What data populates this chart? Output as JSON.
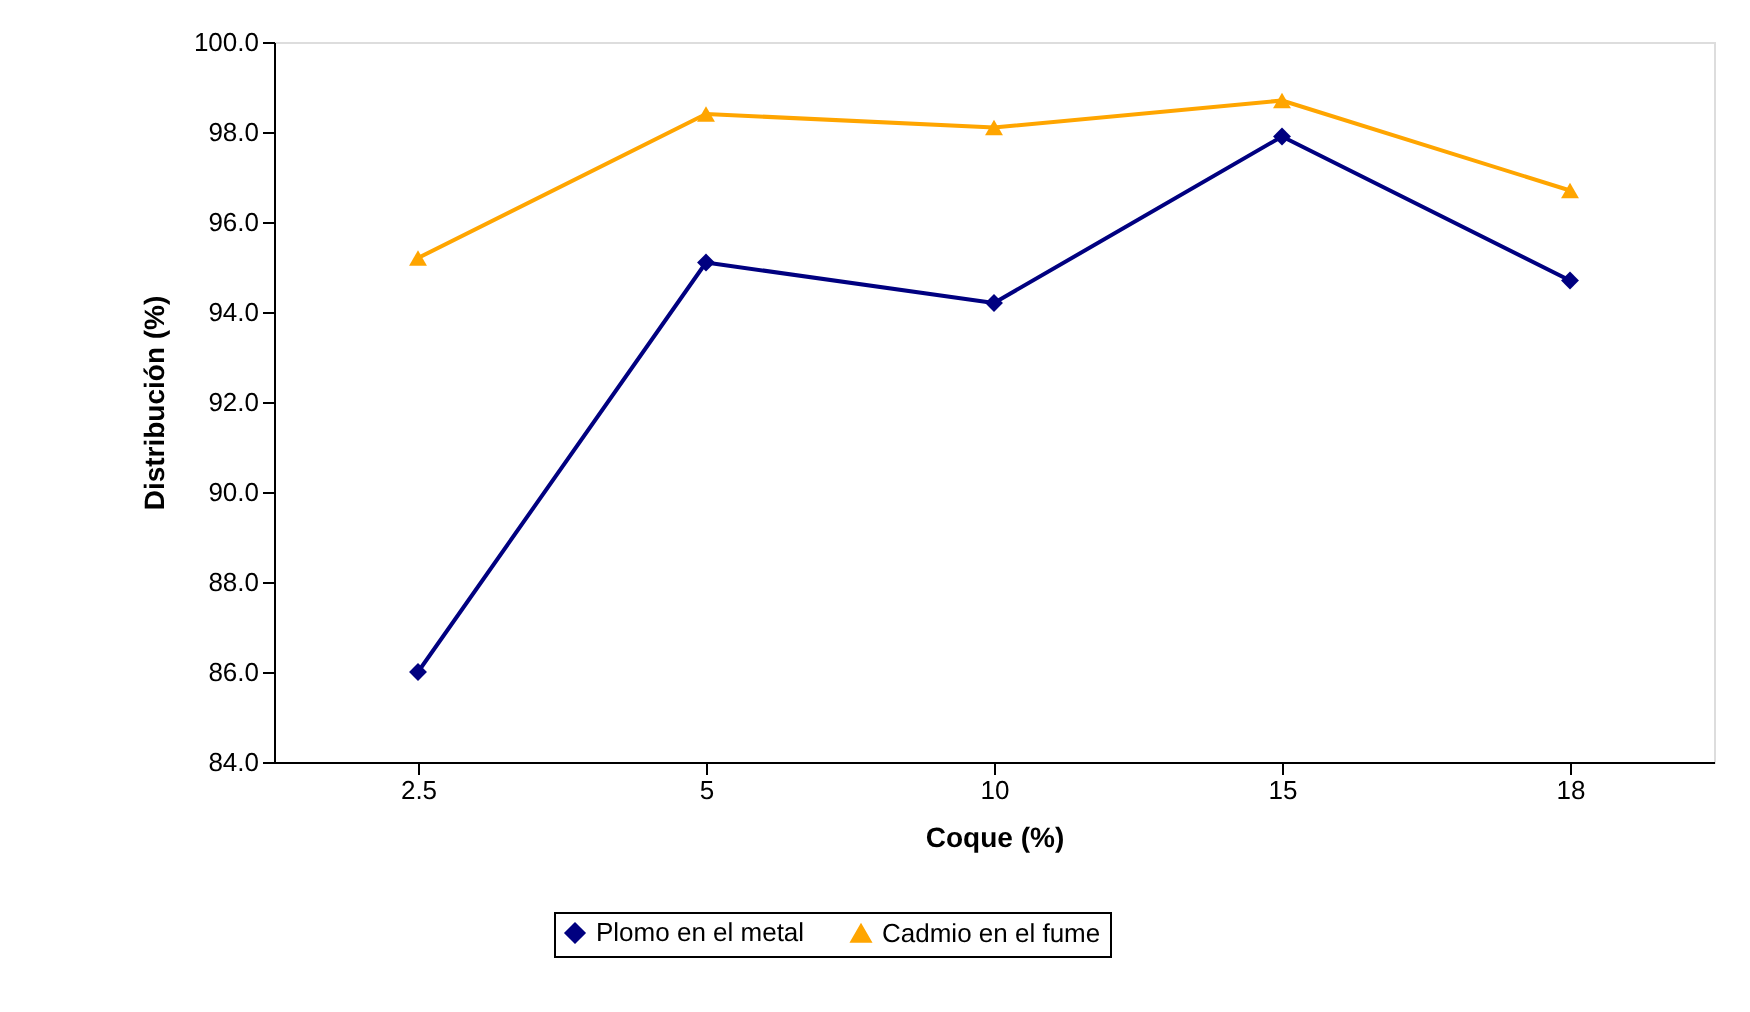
{
  "chart_data": {
    "type": "line",
    "xlabel": "Coque (%)",
    "ylabel": "Distribución (%)",
    "categories": [
      "2.5",
      "5",
      "10",
      "15",
      "18"
    ],
    "series": [
      {
        "name": "Plomo en el metal",
        "color": "#000080",
        "marker": "diamond",
        "values": [
          86.0,
          95.1,
          94.2,
          97.9,
          94.7
        ]
      },
      {
        "name": "Cadmio en el fume",
        "color": "#ffa500",
        "marker": "triangle",
        "values": [
          95.2,
          98.4,
          98.1,
          98.7,
          96.7
        ]
      }
    ],
    "ylim": [
      84,
      100
    ],
    "yticks": [
      {
        "value": 84,
        "label": "84.0"
      },
      {
        "value": 86,
        "label": "86.0"
      },
      {
        "value": 88,
        "label": "88.0"
      },
      {
        "value": 90,
        "label": "90.0"
      },
      {
        "value": 92,
        "label": "92.0"
      },
      {
        "value": 94,
        "label": "94.0"
      },
      {
        "value": 96,
        "label": "96.0"
      },
      {
        "value": 98,
        "label": "98.0"
      },
      {
        "value": 100,
        "label": "100.0"
      }
    ],
    "grid": false,
    "legend": "bottom",
    "line_style": "solid"
  }
}
